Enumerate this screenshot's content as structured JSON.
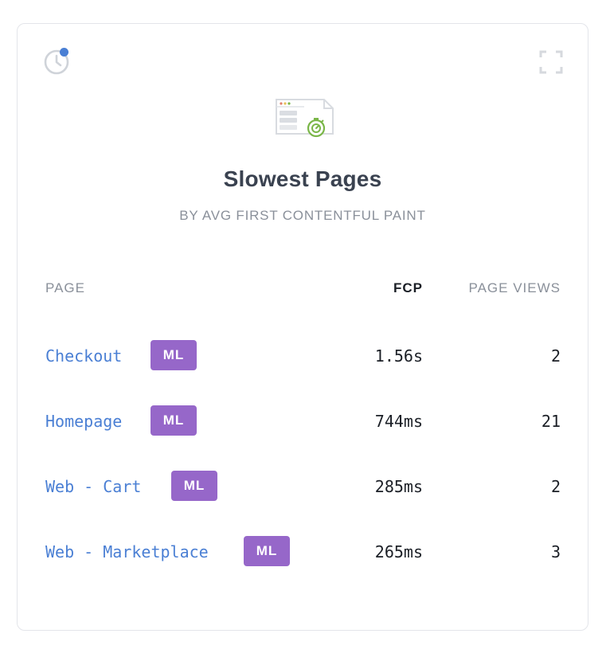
{
  "widget": {
    "title": "Slowest Pages",
    "subtitle": "BY AVG FIRST CONTENTFUL PAINT",
    "icons": {
      "history": "clock-icon",
      "expand": "expand-icon",
      "hero": "page-speed-icon"
    },
    "colors": {
      "link": "#4a7fd4",
      "badge": "#9667c9",
      "notification_dot": "#4a7fd4",
      "hero_accent": "#7ab648"
    }
  },
  "table": {
    "columns": {
      "page": "PAGE",
      "fcp": "FCP",
      "views": "PAGE VIEWS"
    },
    "rows": [
      {
        "page": "Checkout",
        "badge": "ML",
        "fcp": "1.56s",
        "views": "2"
      },
      {
        "page": "Homepage",
        "badge": "ML",
        "fcp": "744ms",
        "views": "21"
      },
      {
        "page": "Web - Cart",
        "badge": "ML",
        "fcp": "285ms",
        "views": "2"
      },
      {
        "page": "Web - Marketplace",
        "badge": "ML",
        "fcp": "265ms",
        "views": "3"
      }
    ]
  }
}
